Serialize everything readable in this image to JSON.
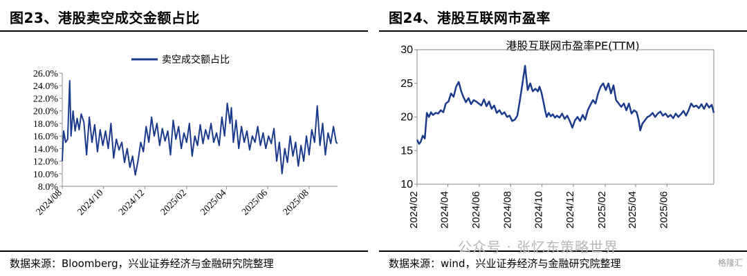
{
  "panels": {
    "left": {
      "title": "图23、港股卖空成交金额占比",
      "source": "数据来源：Bloomberg，兴业证券经济与金融研究院整理"
    },
    "right": {
      "title": "图24、港股互联网市盈率",
      "source": "数据来源：wind，兴业证券经济与金融研究院整理"
    }
  },
  "watermark": {
    "text": "公众号 · 张忆东策略世界",
    "badge": "格隆汇"
  },
  "colors": {
    "line": "#1b3a8c",
    "axis": "#888888"
  },
  "chart_data": [
    {
      "type": "line",
      "title": "",
      "legend": [
        "卖空成交额占比"
      ],
      "legend_position": "top-center",
      "xlabel": "",
      "ylabel": "",
      "ylim": [
        0.08,
        0.26
      ],
      "yticks": [
        "8.0%",
        "10.0%",
        "12.0%",
        "14.0%",
        "16.0%",
        "18.0%",
        "20.0%",
        "22.0%",
        "24.0%",
        "26.0%"
      ],
      "xlim": [
        "2024-08-01",
        "2025-09-12"
      ],
      "xticks": [
        "2024/08",
        "2024/10",
        "2024/12",
        "2025/02",
        "2025/04",
        "2025/06",
        "2025/08"
      ],
      "tick_dates": [
        "2024-08-01",
        "2024-10-01",
        "2024-12-01",
        "2025-02-01",
        "2025-04-01",
        "2025-06-01",
        "2025-08-01"
      ],
      "grid": false,
      "series": [
        {
          "name": "卖空成交额占比",
          "x": [
            "2024-08-01",
            "2024-08-03",
            "2024-08-06",
            "2024-08-09",
            "2024-08-12",
            "2024-08-14",
            "2024-08-17",
            "2024-08-20",
            "2024-08-23",
            "2024-08-26",
            "2024-08-29",
            "2024-09-02",
            "2024-09-06",
            "2024-09-10",
            "2024-09-14",
            "2024-09-18",
            "2024-09-22",
            "2024-09-26",
            "2024-09-30",
            "2024-10-04",
            "2024-10-08",
            "2024-10-12",
            "2024-10-16",
            "2024-10-20",
            "2024-10-24",
            "2024-10-28",
            "2024-11-01",
            "2024-11-05",
            "2024-11-09",
            "2024-11-13",
            "2024-11-17",
            "2024-11-21",
            "2024-11-25",
            "2024-11-29",
            "2024-12-03",
            "2024-12-07",
            "2024-12-11",
            "2024-12-15",
            "2024-12-19",
            "2024-12-23",
            "2024-12-27",
            "2024-12-31",
            "2025-01-04",
            "2025-01-08",
            "2025-01-12",
            "2025-01-16",
            "2025-01-20",
            "2025-01-24",
            "2025-01-28",
            "2025-02-01",
            "2025-02-05",
            "2025-02-09",
            "2025-02-13",
            "2025-02-17",
            "2025-02-21",
            "2025-02-25",
            "2025-03-01",
            "2025-03-05",
            "2025-03-09",
            "2025-03-13",
            "2025-03-17",
            "2025-03-21",
            "2025-03-25",
            "2025-03-29",
            "2025-04-02",
            "2025-04-06",
            "2025-04-08",
            "2025-04-11",
            "2025-04-15",
            "2025-04-19",
            "2025-04-23",
            "2025-04-27",
            "2025-05-01",
            "2025-05-05",
            "2025-05-09",
            "2025-05-13",
            "2025-05-17",
            "2025-05-21",
            "2025-05-25",
            "2025-05-29",
            "2025-06-02",
            "2025-06-06",
            "2025-06-10",
            "2025-06-14",
            "2025-06-18",
            "2025-06-22",
            "2025-06-26",
            "2025-06-30",
            "2025-07-04",
            "2025-07-08",
            "2025-07-12",
            "2025-07-16",
            "2025-07-20",
            "2025-07-24",
            "2025-07-28",
            "2025-08-01",
            "2025-08-05",
            "2025-08-09",
            "2025-08-13",
            "2025-08-17",
            "2025-08-21",
            "2025-08-25",
            "2025-08-29",
            "2025-09-02",
            "2025-09-06",
            "2025-09-10",
            "2025-09-12"
          ],
          "y": [
            0.12,
            0.168,
            0.15,
            0.155,
            0.248,
            0.16,
            0.2,
            0.168,
            0.188,
            0.17,
            0.195,
            0.182,
            0.13,
            0.19,
            0.15,
            0.178,
            0.135,
            0.17,
            0.145,
            0.168,
            0.14,
            0.18,
            0.125,
            0.155,
            0.138,
            0.15,
            0.118,
            0.14,
            0.11,
            0.128,
            0.098,
            0.12,
            0.15,
            0.135,
            0.175,
            0.15,
            0.19,
            0.16,
            0.18,
            0.145,
            0.172,
            0.152,
            0.168,
            0.13,
            0.185,
            0.155,
            0.175,
            0.14,
            0.165,
            0.15,
            0.18,
            0.128,
            0.16,
            0.145,
            0.178,
            0.148,
            0.17,
            0.155,
            0.18,
            0.15,
            0.165,
            0.145,
            0.19,
            0.16,
            0.212,
            0.18,
            0.205,
            0.15,
            0.185,
            0.14,
            0.175,
            0.15,
            0.168,
            0.138,
            0.16,
            0.15,
            0.175,
            0.145,
            0.165,
            0.14,
            0.16,
            0.148,
            0.172,
            0.12,
            0.15,
            0.1,
            0.14,
            0.118,
            0.16,
            0.128,
            0.15,
            0.112,
            0.145,
            0.12,
            0.16,
            0.13,
            0.17,
            0.15,
            0.208,
            0.145,
            0.18,
            0.13,
            0.165,
            0.148,
            0.175,
            0.15,
            0.148
          ]
        }
      ]
    },
    {
      "type": "line",
      "title": "港股互联网市盈率PE(TTM)",
      "xlabel": "",
      "ylabel": "",
      "ylim": [
        10,
        30
      ],
      "yticks": [
        "10",
        "15",
        "20",
        "25",
        "30"
      ],
      "xlim": [
        "2024-02-01",
        "2025-08-31"
      ],
      "xticks": [
        "2024/02",
        "2024/04",
        "2024/06",
        "2024/08",
        "2024/10",
        "2024/12",
        "2025/02",
        "2025/04",
        "2025/06"
      ],
      "tick_dates": [
        "2024-02-01",
        "2024-04-01",
        "2024-06-01",
        "2024-08-01",
        "2024-10-01",
        "2024-12-01",
        "2025-02-01",
        "2025-04-01",
        "2025-06-01"
      ],
      "grid": false,
      "series": [
        {
          "name": "",
          "x": [
            "2024-02-01",
            "2024-02-05",
            "2024-02-08",
            "2024-02-12",
            "2024-02-16",
            "2024-02-20",
            "2024-02-24",
            "2024-02-28",
            "2024-03-03",
            "2024-03-08",
            "2024-03-13",
            "2024-03-18",
            "2024-03-23",
            "2024-03-28",
            "2024-04-02",
            "2024-04-07",
            "2024-04-12",
            "2024-04-17",
            "2024-04-22",
            "2024-04-27",
            "2024-05-01",
            "2024-05-06",
            "2024-05-11",
            "2024-05-16",
            "2024-05-21",
            "2024-05-26",
            "2024-05-31",
            "2024-06-05",
            "2024-06-10",
            "2024-06-15",
            "2024-06-20",
            "2024-06-25",
            "2024-06-30",
            "2024-07-05",
            "2024-07-10",
            "2024-07-15",
            "2024-07-20",
            "2024-07-25",
            "2024-07-30",
            "2024-08-04",
            "2024-08-09",
            "2024-08-14",
            "2024-08-19",
            "2024-08-24",
            "2024-08-29",
            "2024-09-03",
            "2024-09-08",
            "2024-09-13",
            "2024-09-18",
            "2024-09-23",
            "2024-09-26",
            "2024-09-30",
            "2024-10-03",
            "2024-10-07",
            "2024-10-10",
            "2024-10-14",
            "2024-10-18",
            "2024-10-22",
            "2024-10-26",
            "2024-10-30",
            "2024-11-04",
            "2024-11-09",
            "2024-11-14",
            "2024-11-19",
            "2024-11-24",
            "2024-11-29",
            "2024-12-04",
            "2024-12-09",
            "2024-12-14",
            "2024-12-19",
            "2024-12-24",
            "2024-12-29",
            "2025-01-03",
            "2025-01-08",
            "2025-01-13",
            "2025-01-18",
            "2025-01-23",
            "2025-01-28",
            "2025-02-02",
            "2025-02-07",
            "2025-02-12",
            "2025-02-17",
            "2025-02-22",
            "2025-02-27",
            "2025-03-04",
            "2025-03-09",
            "2025-03-14",
            "2025-03-19",
            "2025-03-24",
            "2025-03-29",
            "2025-04-03",
            "2025-04-07",
            "2025-04-10",
            "2025-04-14",
            "2025-04-19",
            "2025-04-24",
            "2025-04-29",
            "2025-05-04",
            "2025-05-09",
            "2025-05-14",
            "2025-05-19",
            "2025-05-24",
            "2025-05-29",
            "2025-06-03",
            "2025-06-08",
            "2025-06-13",
            "2025-06-18",
            "2025-06-23",
            "2025-06-28",
            "2025-07-03",
            "2025-07-08",
            "2025-07-13",
            "2025-07-18",
            "2025-07-23",
            "2025-07-28",
            "2025-08-02",
            "2025-08-07",
            "2025-08-12",
            "2025-08-17",
            "2025-08-22",
            "2025-08-27",
            "2025-08-31"
          ],
          "y": [
            16.6,
            16.0,
            16.3,
            17.2,
            16.8,
            20.6,
            20.0,
            20.7,
            20.3,
            20.6,
            20.5,
            21.0,
            20.7,
            22.0,
            22.3,
            23.5,
            23.0,
            24.5,
            25.2,
            23.8,
            23.0,
            22.2,
            22.8,
            21.9,
            22.5,
            22.3,
            22.0,
            21.7,
            22.6,
            21.6,
            22.3,
            21.2,
            21.7,
            20.6,
            21.0,
            20.4,
            20.7,
            20.0,
            20.2,
            19.4,
            19.6,
            20.2,
            22.5,
            25.0,
            27.6,
            24.0,
            25.0,
            23.8,
            24.2,
            23.8,
            24.5,
            23.6,
            22.5,
            21.0,
            20.0,
            20.6,
            20.1,
            20.4,
            19.9,
            20.2,
            19.9,
            20.5,
            19.7,
            20.2,
            19.4,
            18.4,
            19.5,
            20.0,
            19.4,
            20.3,
            19.6,
            21.0,
            21.8,
            22.5,
            22.0,
            23.5,
            24.5,
            25.0,
            24.0,
            25.0,
            23.5,
            24.7,
            22.5,
            22.0,
            21.5,
            22.0,
            21.0,
            22.0,
            20.5,
            21.0,
            20.7,
            19.5,
            18.0,
            19.0,
            19.5,
            20.0,
            20.2,
            20.6,
            20.0,
            20.5,
            20.8,
            20.2,
            20.5,
            20.0,
            20.3,
            19.8,
            20.5,
            20.0,
            20.4,
            20.9,
            20.2,
            21.0,
            22.0,
            21.5,
            21.7,
            21.3,
            21.9,
            21.2,
            22.0,
            21.4,
            21.8,
            20.6
          ]
        }
      ]
    }
  ]
}
